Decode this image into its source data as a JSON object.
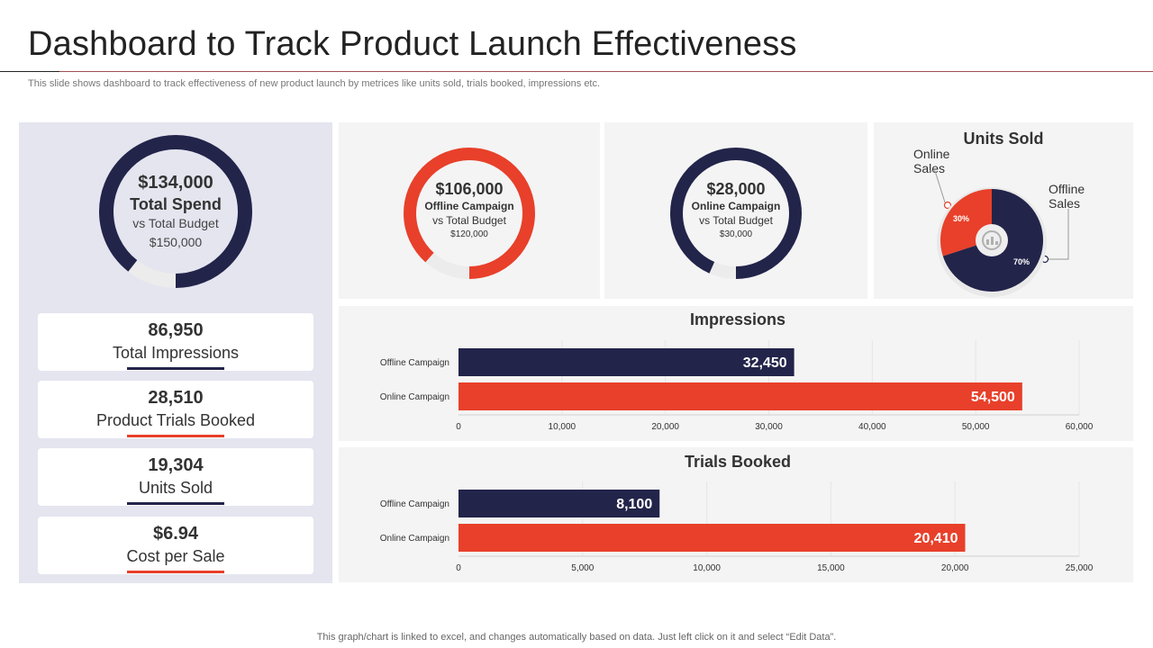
{
  "header": {
    "title": "Dashboard to Track Product Launch Effectiveness",
    "subtitle": "This slide shows dashboard to track effectiveness of new product launch by metrices like units sold, trials booked, impressions etc."
  },
  "footer": {
    "note": "This graph/chart is linked to excel,  and changes automatically based on data. Just left click on it and select “Edit Data”."
  },
  "colors": {
    "navy": "#22244a",
    "red": "#e8402a",
    "track": "#ececec",
    "panel": "#e4e5ef",
    "card": "#f4f4f4"
  },
  "total_spend": {
    "amount": "$134,000",
    "label": "Total Spend",
    "sub": "vs Total Budget",
    "budget": "$150,000",
    "spent": 134000,
    "total": 150000
  },
  "kpis": [
    {
      "value": "86,950",
      "label": "Total Impressions",
      "accent": "#22244a"
    },
    {
      "value": "28,510",
      "label": "Product Trials Booked",
      "accent": "#e8402a"
    },
    {
      "value": "19,304",
      "label": "Units Sold",
      "accent": "#22244a"
    },
    {
      "value": "$6.94",
      "label": "Cost per Sale",
      "accent": "#e8402a"
    }
  ],
  "offline_budget": {
    "amount": "$106,000",
    "label": "Offline Campaign",
    "sub": "vs Total Budget",
    "budget": "$120,000",
    "spent": 106000,
    "total": 120000,
    "color": "#e8402a"
  },
  "online_budget": {
    "amount": "$28,000",
    "label": "Online Campaign",
    "sub": "vs Total Budget",
    "budget": "$30,000",
    "spent": 28000,
    "total": 30000,
    "color": "#22244a"
  },
  "units_sold": {
    "title": "Units Sold",
    "online_label_1": "Online",
    "online_label_2": "Sales",
    "offline_label_1": "Offline",
    "offline_label_2": "Sales",
    "online_pct_label": "30%",
    "offline_pct_label": "70%"
  },
  "impressions": {
    "title": "Impressions"
  },
  "trials": {
    "title": "Trials Booked"
  },
  "chart_data": [
    {
      "type": "pie",
      "title": "Units Sold",
      "categories": [
        "Online Sales",
        "Offline Sales"
      ],
      "values": [
        30,
        70
      ],
      "colors": [
        "#e8402a",
        "#22244a"
      ]
    },
    {
      "type": "bar",
      "orientation": "horizontal",
      "title": "Impressions",
      "categories": [
        "Offline Campaign",
        "Online Campaign"
      ],
      "values": [
        32450,
        54500
      ],
      "value_labels": [
        "32,450",
        "54,500"
      ],
      "colors": [
        "#22244a",
        "#e8402a"
      ],
      "xlim": [
        0,
        60000
      ],
      "ticks": [
        0,
        10000,
        20000,
        30000,
        40000,
        50000,
        60000
      ],
      "tick_labels": [
        "0",
        "10,000",
        "20,000",
        "30,000",
        "40,000",
        "50,000",
        "60,000"
      ]
    },
    {
      "type": "bar",
      "orientation": "horizontal",
      "title": "Trials Booked",
      "categories": [
        "Offline Campaign",
        "Online Campaign"
      ],
      "values": [
        8100,
        20410
      ],
      "value_labels": [
        "8,100",
        "20,410"
      ],
      "colors": [
        "#22244a",
        "#e8402a"
      ],
      "xlim": [
        0,
        25000
      ],
      "ticks": [
        0,
        5000,
        10000,
        15000,
        20000,
        25000
      ],
      "tick_labels": [
        "0",
        "5,000",
        "10,000",
        "15,000",
        "20,000",
        "25,000"
      ]
    }
  ]
}
